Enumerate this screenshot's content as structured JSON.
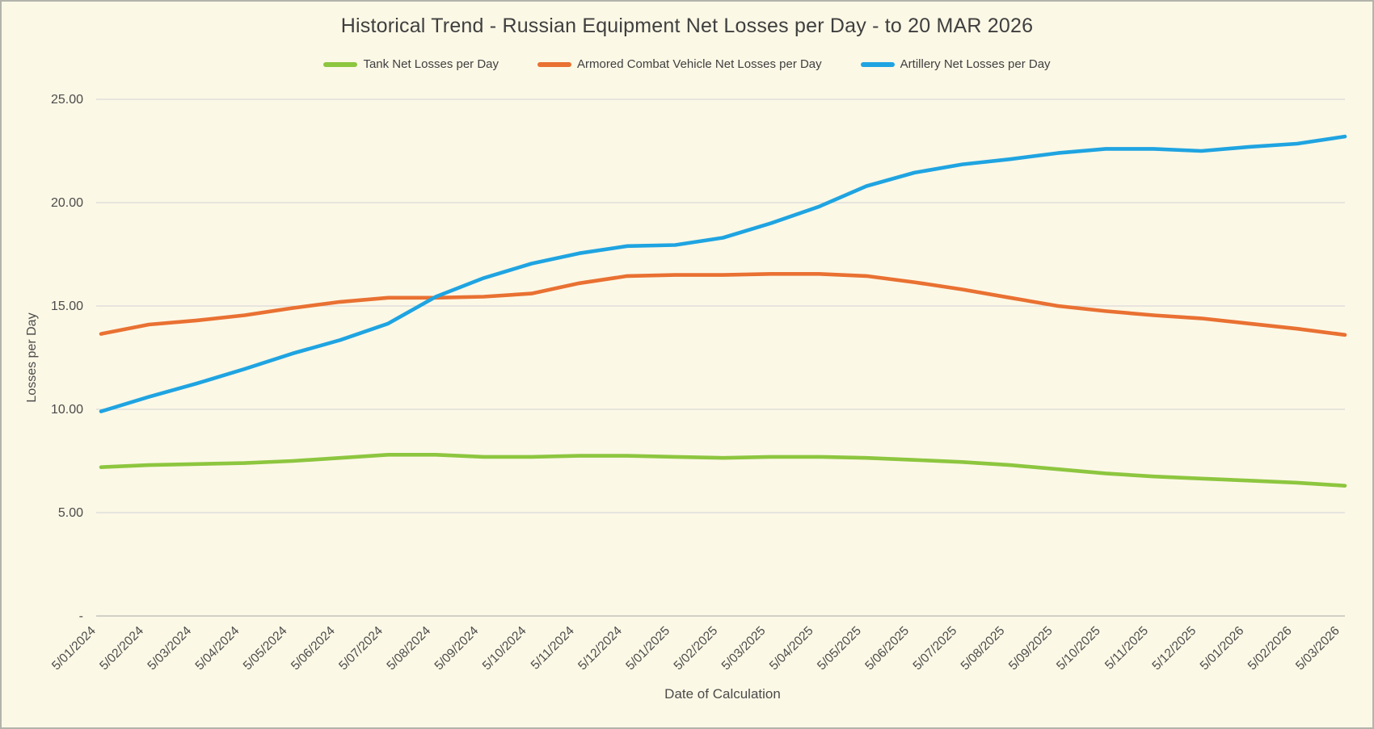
{
  "chart": {
    "title": "Historical Trend - Russian Equipment Net Losses per Day - to 20 MAR 2026",
    "x_axis_title": "Date of Calculation",
    "y_axis_title": "Losses per Day"
  },
  "chart_data": {
    "type": "line",
    "title": "Historical Trend - Russian Equipment Net Losses per Day - to 20 MAR 2026",
    "xlabel": "Date of Calculation",
    "ylabel": "Losses per Day",
    "legend_position": "top",
    "grid": true,
    "ylim": [
      0,
      25
    ],
    "background_color": "#FCF8E6",
    "grid_color": "#D9D9D9",
    "axis_line_color": "#C2C2BD",
    "text_color": "#4b4b4b",
    "y_ticks": {
      "values": [
        0,
        5,
        10,
        15,
        20,
        25
      ],
      "labels": [
        "-",
        "5.00",
        "10.00",
        "15.00",
        "20.00",
        "25.00"
      ]
    },
    "categories": [
      "5/01/2024",
      "5/02/2024",
      "5/03/2024",
      "5/04/2024",
      "5/05/2024",
      "5/06/2024",
      "5/07/2024",
      "5/08/2024",
      "5/09/2024",
      "5/10/2024",
      "5/11/2024",
      "5/12/2024",
      "5/01/2025",
      "5/02/2025",
      "5/03/2025",
      "5/04/2025",
      "5/05/2025",
      "5/06/2025",
      "5/07/2025",
      "5/08/2025",
      "5/09/2025",
      "5/10/2025",
      "5/11/2025",
      "5/12/2025",
      "5/01/2026",
      "5/02/2026",
      "5/03/2026"
    ],
    "series": [
      {
        "name": "Tank Net Losses per Day",
        "color": "#8DC63F",
        "values": [
          7.2,
          7.3,
          7.35,
          7.4,
          7.5,
          7.65,
          7.8,
          7.8,
          7.7,
          7.7,
          7.75,
          7.75,
          7.7,
          7.65,
          7.7,
          7.7,
          7.65,
          7.55,
          7.45,
          7.3,
          7.1,
          6.9,
          6.75,
          6.65,
          6.55,
          6.45,
          6.3
        ]
      },
      {
        "name": "Armored Combat Vehicle Net Losses per Day",
        "color": "#E97132",
        "values": [
          13.65,
          14.1,
          14.3,
          14.55,
          14.9,
          15.2,
          15.4,
          15.4,
          15.45,
          15.6,
          16.1,
          16.45,
          16.5,
          16.5,
          16.55,
          16.55,
          16.45,
          16.15,
          15.8,
          15.4,
          15.0,
          14.75,
          14.55,
          14.4,
          14.15,
          13.9,
          13.6
        ]
      },
      {
        "name": "Artillery Net Losses per Day",
        "color": "#1FA4E1",
        "values": [
          9.9,
          10.6,
          11.25,
          11.95,
          12.7,
          13.35,
          14.15,
          15.45,
          16.35,
          17.05,
          17.55,
          17.9,
          17.95,
          18.3,
          19.0,
          19.8,
          20.8,
          21.45,
          21.85,
          22.1,
          22.4,
          22.6,
          22.6,
          22.5,
          22.7,
          22.85,
          23.2
        ]
      }
    ]
  }
}
